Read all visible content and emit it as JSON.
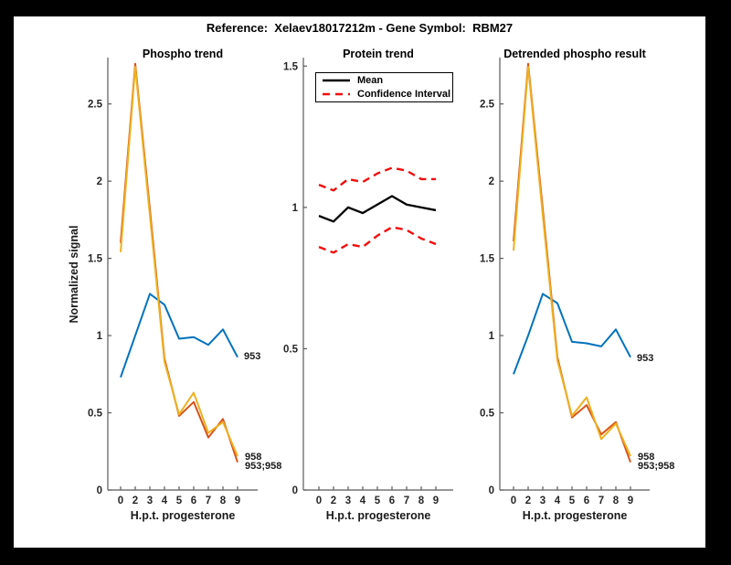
{
  "figure": {
    "title": "Reference:  Xelaev18017212m - Gene Symbol:  RBM27",
    "background": "#000000",
    "canvas_background": "#ffffff"
  },
  "colors": {
    "series_blue": "#0072BD",
    "series_orange": "#D95319",
    "series_yellow": "#EDB120",
    "ci_red": "#F20D0D",
    "mean_black": "#000000",
    "axis": "#595959",
    "tick_text": "#262626"
  },
  "chart_data": [
    {
      "id": "phospho-trend",
      "type": "line",
      "title": "Phospho trend",
      "xlabel": "H.p.t. progesterone",
      "ylabel": "Normalized signal",
      "x_ticklabels": [
        "0",
        "2",
        "3",
        "4",
        "5",
        "6",
        "7",
        "8",
        "9"
      ],
      "yticks": [
        "0",
        "0.5",
        "1",
        "1.5",
        "2",
        "2.5"
      ],
      "ylim": [
        0,
        2.8
      ],
      "grid": false,
      "legend": null,
      "series": [
        {
          "name": "953",
          "label": "953",
          "color": "#0072BD",
          "dash": false,
          "values": [
            0.73,
            1.0,
            1.27,
            1.2,
            0.98,
            0.99,
            0.94,
            1.04,
            0.86
          ]
        },
        {
          "name": "953;958",
          "label": "953;958",
          "color": "#D95319",
          "dash": false,
          "values": [
            1.6,
            2.76,
            1.82,
            0.85,
            0.48,
            0.57,
            0.34,
            0.46,
            0.18
          ]
        },
        {
          "name": "958",
          "label": "958",
          "color": "#EDB120",
          "dash": false,
          "values": [
            1.54,
            2.74,
            1.78,
            0.83,
            0.49,
            0.63,
            0.37,
            0.44,
            0.22
          ]
        }
      ]
    },
    {
      "id": "protein-trend",
      "type": "line",
      "title": "Protein trend",
      "xlabel": "H.p.t. progesterone",
      "ylabel": "",
      "x_ticklabels": [
        "0",
        "2",
        "3",
        "4",
        "5",
        "6",
        "7",
        "8",
        "9"
      ],
      "yticks": [
        "0",
        "0.5",
        "1",
        "1.5"
      ],
      "ylim": [
        0,
        1.53
      ],
      "grid": false,
      "legend": {
        "position": "top-center",
        "entries": [
          {
            "label": "Mean",
            "style": "solid",
            "color": "#000000"
          },
          {
            "label": "Confidence Interval",
            "style": "dashed",
            "color": "#F20D0D"
          }
        ]
      },
      "series": [
        {
          "name": "Mean",
          "label": "",
          "color": "#000000",
          "dash": false,
          "values": [
            0.97,
            0.95,
            1.0,
            0.98,
            1.01,
            1.04,
            1.01,
            1.0,
            0.99
          ]
        },
        {
          "name": "Confidence Interval upper",
          "label": "",
          "color": "#F20D0D",
          "dash": true,
          "values": [
            1.08,
            1.06,
            1.1,
            1.09,
            1.12,
            1.14,
            1.13,
            1.1,
            1.1
          ]
        },
        {
          "name": "Confidence Interval lower",
          "label": "",
          "color": "#F20D0D",
          "dash": true,
          "values": [
            0.86,
            0.84,
            0.87,
            0.86,
            0.9,
            0.93,
            0.92,
            0.89,
            0.87
          ]
        }
      ]
    },
    {
      "id": "detrended-phospho-result",
      "type": "line",
      "title": "Detrended phospho result",
      "xlabel": "H.p.t. progesterone",
      "ylabel": "",
      "x_ticklabels": [
        "0",
        "2",
        "3",
        "4",
        "5",
        "6",
        "7",
        "8",
        "9"
      ],
      "yticks": [
        "0",
        "0.5",
        "1",
        "1.5",
        "2",
        "2.5"
      ],
      "ylim": [
        0,
        2.8
      ],
      "grid": false,
      "legend": null,
      "series": [
        {
          "name": "953",
          "label": "953",
          "color": "#0072BD",
          "dash": false,
          "values": [
            0.75,
            1.0,
            1.27,
            1.21,
            0.96,
            0.95,
            0.93,
            1.04,
            0.86
          ]
        },
        {
          "name": "953;958",
          "label": "953;958",
          "color": "#D95319",
          "dash": false,
          "values": [
            1.61,
            2.76,
            1.82,
            0.86,
            0.47,
            0.55,
            0.36,
            0.44,
            0.18
          ]
        },
        {
          "name": "958",
          "label": "958",
          "color": "#EDB120",
          "dash": false,
          "values": [
            1.55,
            2.74,
            1.78,
            0.84,
            0.48,
            0.6,
            0.33,
            0.43,
            0.22
          ]
        }
      ]
    }
  ]
}
